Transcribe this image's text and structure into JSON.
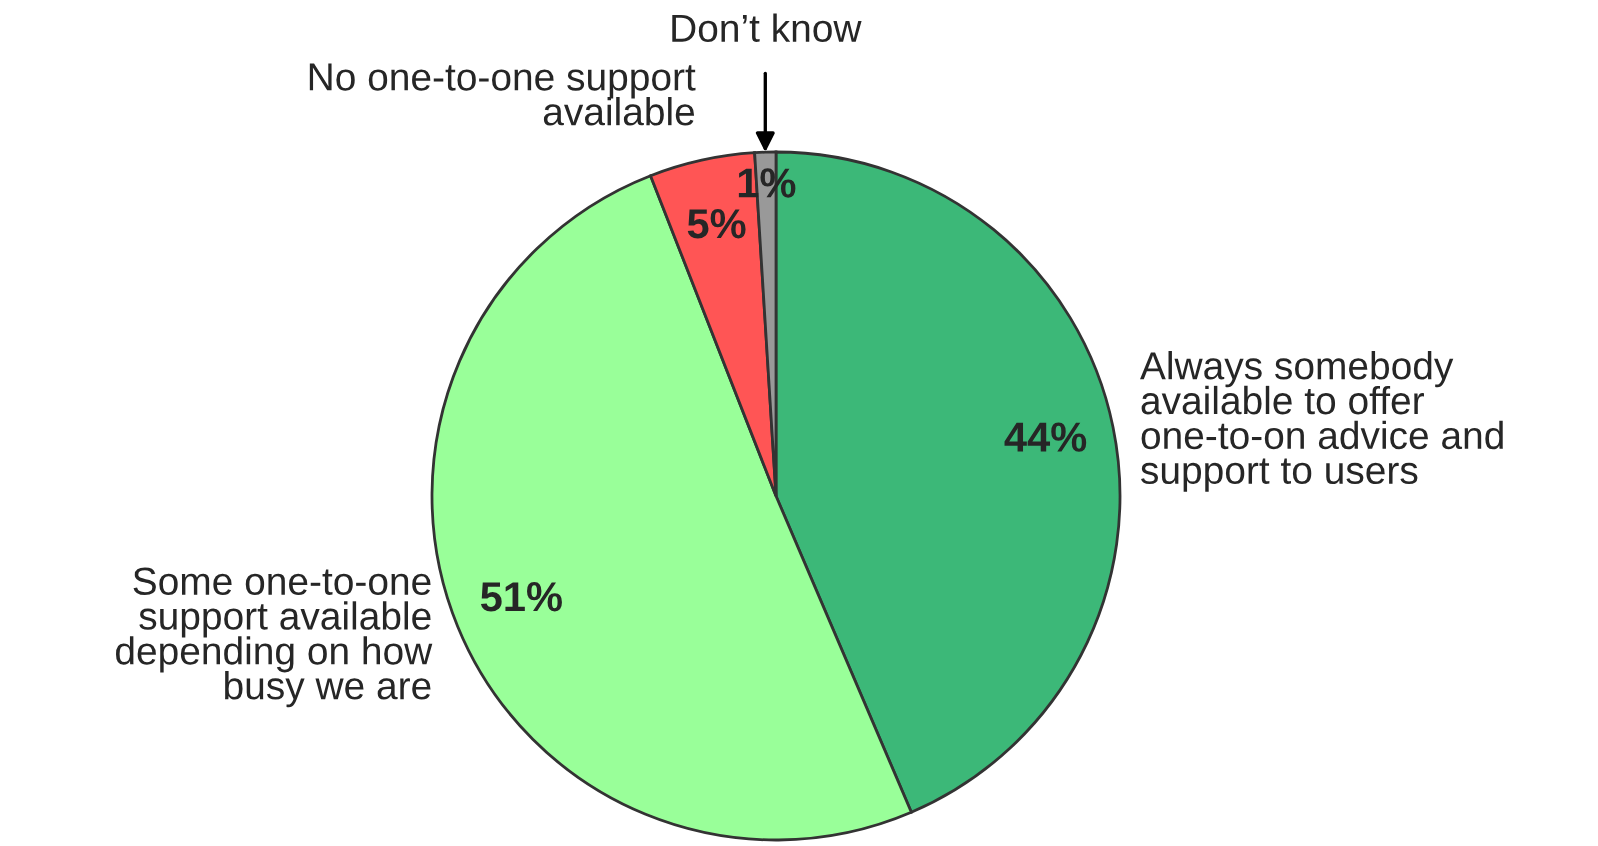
{
  "chart_data": {
    "type": "pie",
    "categories": [
      "Always somebody\navailable to offer\none-to-on advice and\nsupport to users",
      "Some one-to-one\nsupport available\ndepending on how\nbusy we are",
      "No one-to-one support\navailable",
      "Don’t know"
    ],
    "values": [
      44,
      51,
      5,
      1
    ],
    "value_labels": [
      "44%",
      "51%",
      "5%",
      "1%"
    ],
    "colors": [
      "#3cb878",
      "#99ff99",
      "#ff5555",
      "#999999"
    ],
    "legend": false
  }
}
